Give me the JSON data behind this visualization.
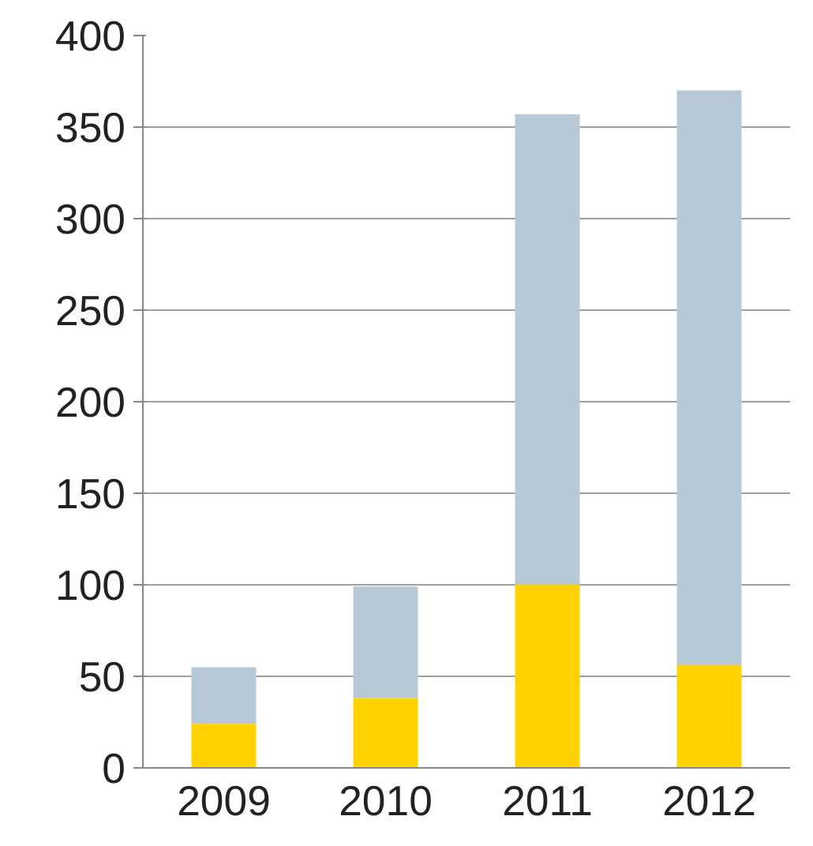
{
  "chart_data": {
    "type": "bar",
    "stacked": true,
    "categories": [
      "2009",
      "2010",
      "2011",
      "2012"
    ],
    "series": [
      {
        "color": "#ffd200",
        "values": [
          24,
          38,
          100,
          56
        ]
      },
      {
        "color": "#b7c9d6",
        "values": [
          31,
          61,
          257,
          314
        ]
      }
    ],
    "ylim": [
      0,
      400
    ],
    "yticks": [
      0,
      50,
      100,
      150,
      200,
      250,
      300,
      350,
      400
    ],
    "grid": "y"
  }
}
